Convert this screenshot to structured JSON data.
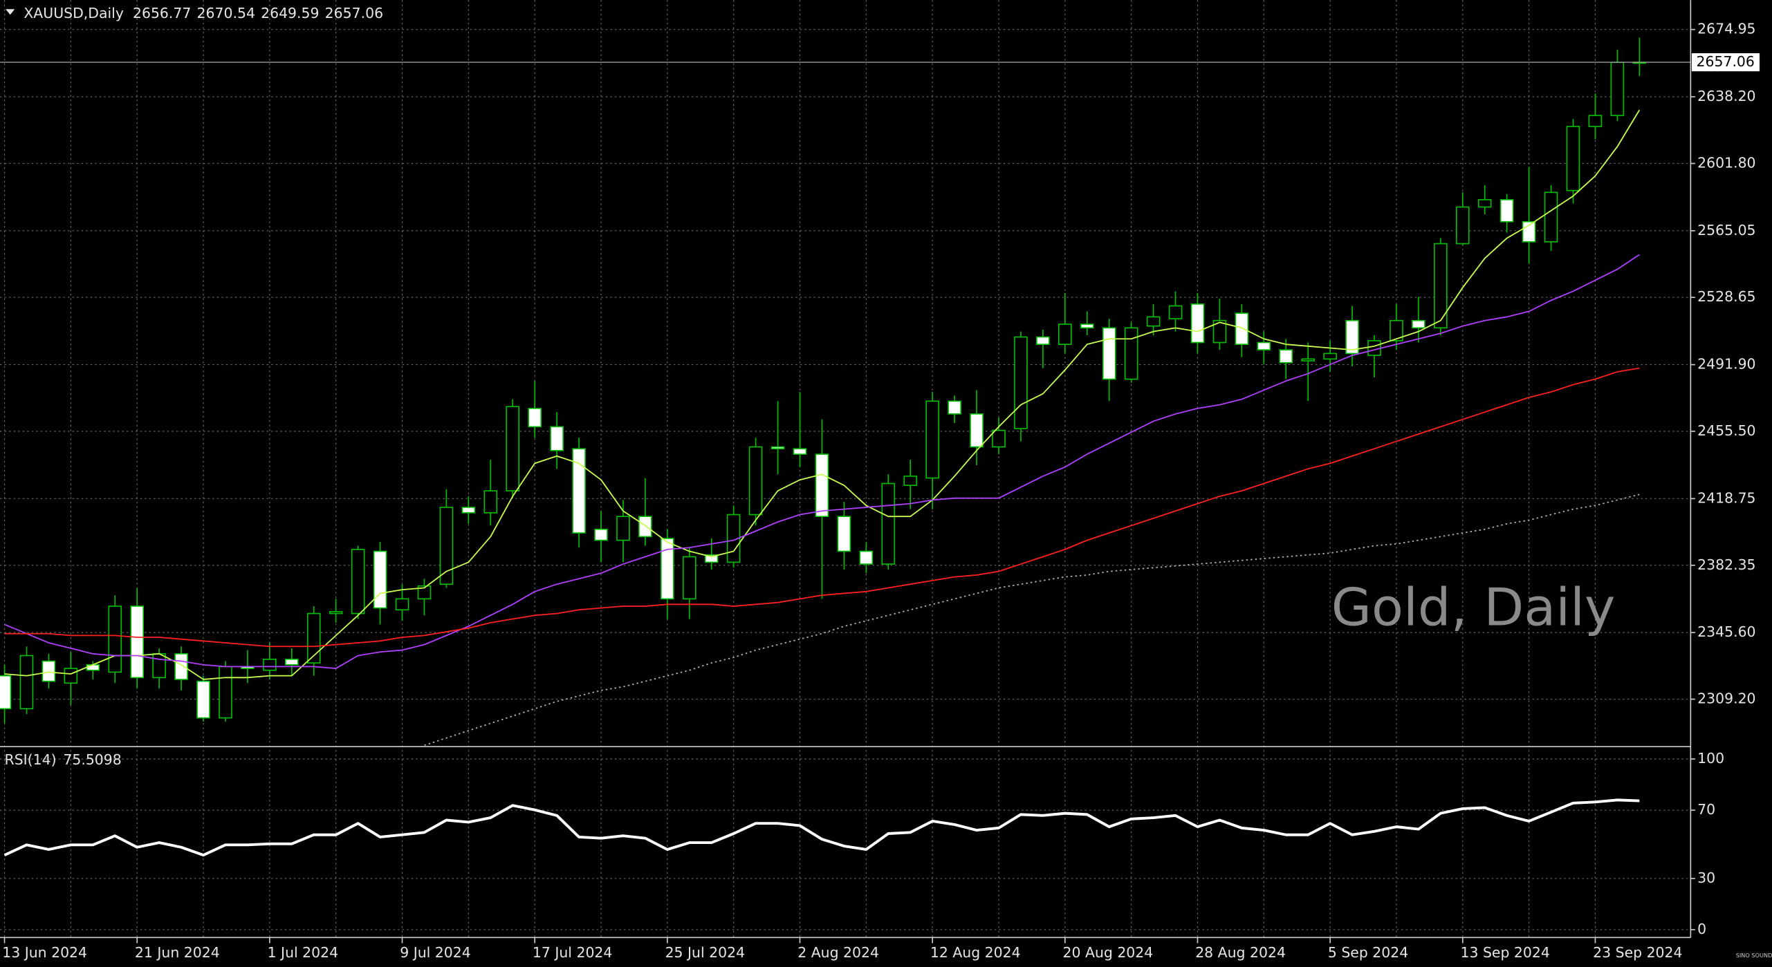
{
  "chart_data": [
    {
      "type": "candlestick",
      "symbol": "XAUUSD,Daily",
      "watermark": "Gold, Daily",
      "categories": [
        "13 Jun 2024",
        null,
        null,
        null,
        null,
        null,
        "21 Jun 2024",
        null,
        null,
        null,
        null,
        null,
        "1 Jul 2024",
        null,
        null,
        null,
        null,
        null,
        "9 Jul 2024",
        null,
        null,
        null,
        null,
        null,
        "17 Jul 2024",
        null,
        null,
        null,
        null,
        null,
        "25 Jul 2024",
        null,
        null,
        null,
        null,
        null,
        "2 Aug 2024",
        null,
        null,
        null,
        null,
        null,
        "12 Aug 2024",
        null,
        null,
        null,
        null,
        null,
        "20 Aug 2024",
        null,
        null,
        null,
        null,
        null,
        "28 Aug 2024",
        null,
        null,
        null,
        null,
        null,
        "5 Sep 2024",
        null,
        null,
        null,
        null,
        null,
        "13 Sep 2024",
        null,
        null,
        null,
        null,
        null,
        "23 Sep 2024",
        null,
        null
      ],
      "open": [
        2322,
        2304,
        2330,
        2318,
        2328,
        2324,
        2360,
        2321,
        2334,
        2319,
        2299,
        2327,
        2325,
        2331,
        2329,
        2356,
        2356,
        2390,
        2358,
        2364,
        2372,
        2414,
        2411,
        2423,
        2468,
        2458,
        2446,
        2402,
        2396,
        2409,
        2397,
        2364,
        2388,
        2384,
        2410,
        2447,
        2446,
        2443,
        2409,
        2390,
        2383,
        2426,
        2430,
        2472,
        2465,
        2447,
        2457,
        2507,
        2503,
        2514,
        2512,
        2484,
        2513,
        2517,
        2525,
        2504,
        2520,
        2504,
        2500,
        2494,
        2495,
        2516,
        2497,
        2505,
        2516,
        2512,
        2558,
        2578,
        2582,
        2570,
        2559,
        2587,
        2622,
        2628,
        2656.77
      ],
      "high": [
        2328,
        2338,
        2334,
        2335,
        2330,
        2366,
        2370,
        2337,
        2338,
        2322,
        2330,
        2336,
        2340,
        2337,
        2360,
        2364,
        2393,
        2395,
        2372,
        2375,
        2424,
        2420,
        2440,
        2473,
        2483,
        2466,
        2452,
        2412,
        2418,
        2430,
        2402,
        2392,
        2397,
        2415,
        2452,
        2472,
        2477,
        2462,
        2417,
        2395,
        2432,
        2440,
        2477,
        2475,
        2478,
        2463,
        2510,
        2511,
        2531,
        2521,
        2517,
        2515,
        2525,
        2532,
        2531,
        2528,
        2525,
        2510,
        2506,
        2504,
        2505,
        2524,
        2508,
        2525,
        2529,
        2561,
        2586,
        2590,
        2585,
        2600,
        2590,
        2626,
        2640,
        2664,
        2670.54
      ],
      "low": [
        2296,
        2301,
        2315,
        2306,
        2320,
        2318,
        2315,
        2315,
        2314,
        2297,
        2297,
        2318,
        2320,
        2322,
        2322,
        2351,
        2353,
        2350,
        2352,
        2355,
        2370,
        2405,
        2404,
        2419,
        2452,
        2435,
        2392,
        2384,
        2384,
        2393,
        2353,
        2353,
        2380,
        2381,
        2404,
        2432,
        2436,
        2364,
        2380,
        2378,
        2380,
        2413,
        2413,
        2460,
        2437,
        2443,
        2450,
        2490,
        2498,
        2508,
        2472,
        2482,
        2508,
        2510,
        2498,
        2500,
        2496,
        2492,
        2484,
        2472,
        2488,
        2491,
        2485,
        2500,
        2504,
        2508,
        2557,
        2574,
        2564,
        2547,
        2554,
        2580,
        2615,
        2625,
        2649.59
      ],
      "close": [
        2304,
        2333,
        2319,
        2326,
        2325,
        2360,
        2321,
        2334,
        2320,
        2299,
        2327,
        2326,
        2331,
        2328,
        2356,
        2357,
        2391,
        2359,
        2364,
        2371,
        2414,
        2411,
        2423,
        2469,
        2458,
        2445,
        2400,
        2396,
        2409,
        2398,
        2364,
        2387,
        2384,
        2410,
        2447,
        2446,
        2443,
        2409,
        2390,
        2383,
        2427,
        2431,
        2472,
        2465,
        2447,
        2456,
        2507,
        2503,
        2514,
        2512,
        2484,
        2512,
        2518,
        2524,
        2504,
        2516,
        2503,
        2500,
        2493,
        2495,
        2498,
        2498,
        2505,
        2516,
        2512,
        2558,
        2578,
        2582,
        2570,
        2559,
        2586,
        2622,
        2628,
        2657,
        2657.06
      ],
      "bull_color": "#000000",
      "bear_color": "#ffffff",
      "wick_color": "#00c000",
      "series": [
        {
          "color": "#c8ff50",
          "style": "solid",
          "values": [
            2323,
            2322,
            2324,
            2323,
            2328,
            2333,
            2333,
            2334,
            2328,
            2320,
            2321,
            2321,
            2322,
            2322,
            2333,
            2344,
            2355,
            2367,
            2369,
            2370,
            2379,
            2384,
            2398,
            2420,
            2438,
            2442,
            2438,
            2429,
            2412,
            2404,
            2395,
            2390,
            2387,
            2390,
            2407,
            2423,
            2429,
            2432,
            2426,
            2415,
            2409,
            2409,
            2418,
            2431,
            2445,
            2458,
            2470,
            2476,
            2489,
            2503,
            2506,
            2506,
            2510,
            2512,
            2510,
            2515,
            2512,
            2506,
            2503,
            2502,
            2501,
            2500,
            2502,
            2506,
            2510,
            2516,
            2534,
            2550,
            2561,
            2568,
            2576,
            2584,
            2595,
            2611,
            2631
          ]
        },
        {
          "color": "#b040ff",
          "style": "solid",
          "values": [
            2350,
            2345,
            2340,
            2337,
            2334,
            2333,
            2333,
            2331,
            2330,
            2328,
            2327,
            2327,
            2327,
            2327,
            2327,
            2326,
            2333,
            2335,
            2336,
            2339,
            2344,
            2349,
            2355,
            2361,
            2368,
            2372,
            2375,
            2378,
            2383,
            2387,
            2391,
            2392,
            2394,
            2396,
            2401,
            2406,
            2410,
            2412,
            2413,
            2414,
            2415,
            2416,
            2418,
            2419,
            2419,
            2419,
            2425,
            2431,
            2436,
            2443,
            2449,
            2455,
            2461,
            2465,
            2468,
            2470,
            2473,
            2478,
            2483,
            2487,
            2492,
            2497,
            2500,
            2503,
            2506,
            2509,
            2513,
            2516,
            2518,
            2521,
            2527,
            2532,
            2538,
            2544,
            2552
          ]
        },
        {
          "color": "#ff2020",
          "style": "solid",
          "values": [
            2345,
            2345,
            2345,
            2344,
            2344,
            2344,
            2343,
            2343,
            2342,
            2341,
            2340,
            2339,
            2338,
            2338,
            2338,
            2339,
            2340,
            2341,
            2343,
            2344,
            2346,
            2348,
            2351,
            2353,
            2355,
            2356,
            2358,
            2359,
            2360,
            2360,
            2361,
            2361,
            2361,
            2360,
            2361,
            2362,
            2364,
            2366,
            2367,
            2368,
            2370,
            2372,
            2374,
            2376,
            2377,
            2379,
            2383,
            2387,
            2391,
            2396,
            2400,
            2404,
            2408,
            2412,
            2416,
            2420,
            2423,
            2427,
            2431,
            2435,
            2438,
            2442,
            2446,
            2450,
            2454,
            2458,
            2462,
            2466,
            2470,
            2474,
            2477,
            2481,
            2484,
            2488,
            2490
          ]
        },
        {
          "color": "#b0b0b0",
          "style": "dotted",
          "values": [
            null,
            null,
            null,
            null,
            null,
            null,
            null,
            null,
            null,
            null,
            null,
            null,
            null,
            null,
            null,
            null,
            null,
            null,
            null,
            2284,
            2288,
            2292,
            2296,
            2300,
            2304,
            2308,
            2311,
            2314,
            2316,
            2319,
            2322,
            2325,
            2329,
            2332,
            2336,
            2339,
            2342,
            2345,
            2349,
            2352,
            2355,
            2358,
            2361,
            2364,
            2367,
            2370,
            2372,
            2374,
            2376,
            2377,
            2379,
            2380,
            2381,
            2382,
            2383,
            2384,
            2385,
            2386,
            2387,
            2388,
            2389,
            2391,
            2393,
            2394,
            2396,
            2398,
            2400,
            2402,
            2405,
            2407,
            2410,
            2413,
            2415,
            2418,
            2421
          ]
        }
      ],
      "ylim": [
        2283.9,
        2691.0
      ],
      "yticks": [
        2674.95,
        {
          "value": 2638.2,
          "label": "2638.20"
        },
        {
          "value": 2601.8,
          "label": "2601.80"
        },
        2565.05,
        2528.65,
        {
          "value": 2491.9,
          "label": "2491.90"
        },
        {
          "value": 2455.5,
          "label": "2455.50"
        },
        2418.75,
        2382.35,
        {
          "value": 2345.6,
          "label": "2345.60"
        },
        {
          "value": 2309.2,
          "label": "2309.20"
        }
      ],
      "grid": true
    },
    {
      "type": "line",
      "title": "RSI(14)",
      "series": [
        {
          "color": "#ffffff",
          "values": [
            43.7,
            49.7,
            47,
            49.7,
            49.7,
            55,
            48.3,
            51,
            48.3,
            43.7,
            49.7,
            49.7,
            50.3,
            50.3,
            55.6,
            55.6,
            62.3,
            54.3,
            55.6,
            57,
            64.2,
            63,
            65.6,
            72.8,
            70.2,
            66.9,
            54.3,
            53.6,
            55,
            53.6,
            47,
            51,
            51,
            56.3,
            62.3,
            62.3,
            61,
            53,
            49,
            47,
            56.3,
            57,
            63.6,
            61.6,
            58.3,
            59.6,
            67.5,
            66.9,
            68.2,
            67.5,
            60.3,
            64.9,
            65.6,
            66.9,
            60.3,
            64.2,
            59.6,
            58.3,
            55.6,
            55.6,
            62.3,
            55.6,
            57.6,
            60.3,
            58.9,
            68.2,
            70.9,
            71.5,
            66.9,
            63.6,
            68.9,
            74.2,
            74.8,
            76,
            75.5098
          ]
        }
      ],
      "ylim": [
        -4.6,
        106.6
      ],
      "yticks": [
        100,
        70,
        30,
        0
      ],
      "grid": true
    }
  ],
  "footer": {
    "logo": "SINO SOUND"
  }
}
